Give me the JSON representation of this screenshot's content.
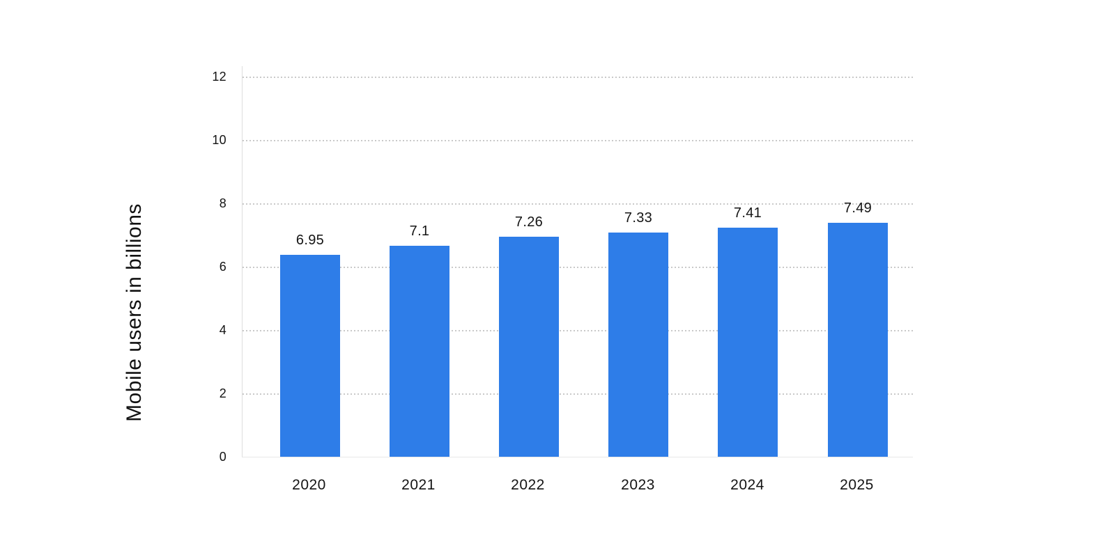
{
  "chart_data": {
    "type": "bar",
    "title": "",
    "categories": [
      "2020",
      "2021",
      "2022",
      "2023",
      "2024",
      "2025"
    ],
    "values": [
      6.95,
      7.1,
      7.26,
      7.33,
      7.41,
      7.49
    ],
    "value_labels": [
      "6.95",
      "7.1",
      "7.26",
      "7.33",
      "7.41",
      "7.49"
    ],
    "xlabel": "",
    "ylabel": "Mobile users in billions",
    "ylim": [
      0,
      12
    ],
    "yticks": [
      0,
      2,
      4,
      6,
      8,
      10,
      12
    ],
    "grid": "horizontal-dotted",
    "legend_position": "none",
    "bar_color": "#2E7DE8",
    "grid_color": "#c9c9c9",
    "axis_color": "#dedede",
    "text_color": "#141414",
    "background": "#FFFFFF"
  }
}
